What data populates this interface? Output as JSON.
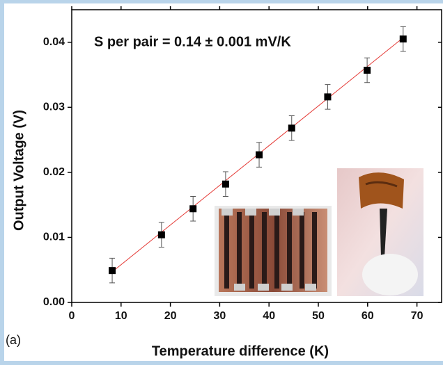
{
  "chart_data": {
    "type": "scatter",
    "annotation": "S per pair = 0.14 ± 0.001 mV/K",
    "panel_label": "(a)",
    "x_label": "Temperature difference (K)",
    "y_label": "Output Voltage (V)",
    "xlim": [
      0,
      75
    ],
    "xticks": [
      0,
      10,
      20,
      30,
      40,
      50,
      60,
      70
    ],
    "ylim": [
      0,
      0.045
    ],
    "yticks": [
      {
        "value": 0,
        "label": "0.00"
      },
      0.01,
      0.02,
      0.03,
      0.04
    ],
    "series": [
      {
        "color": "#000000",
        "x": [
          8.2,
          18.2,
          24.6,
          31.2,
          38.0,
          44.6,
          51.9,
          59.9,
          67.2
        ],
        "values": [
          0.0049,
          0.0104,
          0.0144,
          0.0182,
          0.0227,
          0.0268,
          0.0316,
          0.0357,
          0.0405
        ],
        "errors": [
          0.0019,
          0.0019,
          0.0019,
          0.0019,
          0.0019,
          0.0019,
          0.0019,
          0.0019,
          0.0019
        ]
      }
    ],
    "fit_line": {
      "color": "#e53935",
      "x": [
        8.2,
        67.2
      ],
      "values": [
        0.0047,
        0.0407
      ]
    }
  }
}
